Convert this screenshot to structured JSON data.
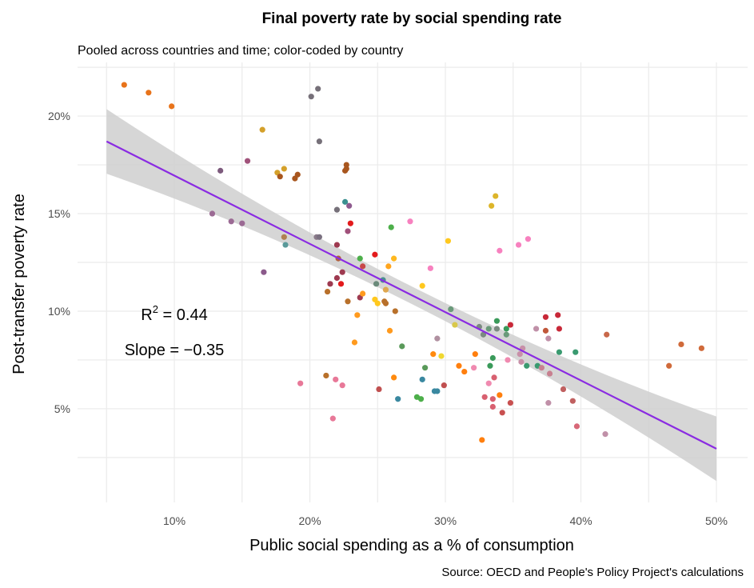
{
  "chart_data": {
    "type": "scatter",
    "title": "Final poverty rate by social spending rate",
    "subtitle": "Pooled across countries and time; color-coded by country",
    "xlabel": "Public social spending as a % of consumption",
    "ylabel": "Post-transfer poverty rate",
    "caption": "Source: OECD and People's Policy Project's calculations",
    "xlim": [
      2.86,
      52.3
    ],
    "ylim": [
      0.2,
      22.75
    ],
    "x_ticks": [
      {
        "value": 10,
        "label": "10%"
      },
      {
        "value": 20,
        "label": "20%"
      },
      {
        "value": 30,
        "label": "30%"
      },
      {
        "value": 40,
        "label": "40%"
      },
      {
        "value": 50,
        "label": "50%"
      }
    ],
    "y_ticks": [
      {
        "value": 5,
        "label": "5%"
      },
      {
        "value": 10,
        "label": "10%"
      },
      {
        "value": 15,
        "label": "15%"
      },
      {
        "value": 20,
        "label": "20%"
      }
    ],
    "x_minor_grid": [
      5,
      15,
      25,
      35,
      45
    ],
    "y_minor_grid": [
      2.5,
      7.5,
      12.5,
      17.5,
      22.5
    ],
    "grid": true,
    "legend": "none",
    "annotations": {
      "r2_label": "R",
      "r2_sup": "2",
      "r2_value": " = 0.44",
      "slope": "Slope = −0.35"
    },
    "fit": {
      "slope": -0.35,
      "intercept": 20.45,
      "x_range": [
        5,
        50
      ],
      "color": "#8A2BE2",
      "band_color": "#CFCFCF"
    },
    "points": [
      [
        6.3,
        21.6,
        "#E8731A"
      ],
      [
        8.1,
        21.2,
        "#E8731A"
      ],
      [
        9.8,
        20.5,
        "#E8731A"
      ],
      [
        16.5,
        19.3,
        "#D4A02A"
      ],
      [
        20.1,
        21.0,
        "#767079"
      ],
      [
        20.6,
        21.4,
        "#767079"
      ],
      [
        20.7,
        18.7,
        "#767079"
      ],
      [
        15.4,
        17.7,
        "#A0527A"
      ],
      [
        13.4,
        17.2,
        "#7D5A7D"
      ],
      [
        17.6,
        17.1,
        "#D4A02A"
      ],
      [
        18.1,
        17.3,
        "#D4A02A"
      ],
      [
        17.8,
        16.9,
        "#A8561E"
      ],
      [
        18.9,
        16.8,
        "#A8561E"
      ],
      [
        19.1,
        17.0,
        "#A8561E"
      ],
      [
        22.7,
        17.5,
        "#A8561E"
      ],
      [
        22.7,
        17.3,
        "#A8561E"
      ],
      [
        22.6,
        17.2,
        "#A8561E"
      ],
      [
        12.8,
        15.0,
        "#9B6A94"
      ],
      [
        14.2,
        14.6,
        "#9B6A94"
      ],
      [
        15.0,
        14.5,
        "#9B6A94"
      ],
      [
        16.6,
        12.0,
        "#8B5A8B"
      ],
      [
        18.1,
        13.8,
        "#B08050"
      ],
      [
        18.2,
        13.4,
        "#5A9A9A"
      ],
      [
        22.6,
        15.6,
        "#3A9090"
      ],
      [
        22.9,
        15.4,
        "#8E5A8E"
      ],
      [
        22.0,
        15.2,
        "#767079"
      ],
      [
        23.0,
        14.5,
        "#E31A1C"
      ],
      [
        22.8,
        14.1,
        "#A0507A"
      ],
      [
        20.5,
        13.8,
        "#8A7A8A"
      ],
      [
        20.7,
        13.8,
        "#7A7080"
      ],
      [
        22.0,
        13.4,
        "#9E3A50"
      ],
      [
        22.1,
        12.7,
        "#B06040"
      ],
      [
        23.7,
        12.7,
        "#4DAF4A"
      ],
      [
        24.8,
        12.9,
        "#E31A1C"
      ],
      [
        26.0,
        14.3,
        "#4DAF4A"
      ],
      [
        27.4,
        14.6,
        "#F781BF"
      ],
      [
        33.7,
        15.9,
        "#DDB52A"
      ],
      [
        33.4,
        15.4,
        "#DDB52A"
      ],
      [
        30.2,
        13.6,
        "#FFC81E"
      ],
      [
        26.2,
        12.7,
        "#FFB81E"
      ],
      [
        25.8,
        12.3,
        "#FFA51E"
      ],
      [
        28.9,
        12.2,
        "#F781BF"
      ],
      [
        23.9,
        12.3,
        "#C84848"
      ],
      [
        22.4,
        12.0,
        "#9E3A50"
      ],
      [
        22.0,
        11.7,
        "#9E3A50"
      ],
      [
        21.5,
        11.4,
        "#9E3A50"
      ],
      [
        22.3,
        11.4,
        "#E31A1C"
      ],
      [
        21.3,
        11.0,
        "#B8702A"
      ],
      [
        22.8,
        10.5,
        "#B8702A"
      ],
      [
        23.7,
        10.7,
        "#9E3A50"
      ],
      [
        23.9,
        10.9,
        "#FF9A1E"
      ],
      [
        24.9,
        11.4,
        "#6A8A7A"
      ],
      [
        25.4,
        11.6,
        "#4A9090"
      ],
      [
        25.6,
        11.1,
        "#E0A850"
      ],
      [
        24.8,
        10.6,
        "#FFC81E"
      ],
      [
        25.0,
        10.4,
        "#FFC81E"
      ],
      [
        25.5,
        10.5,
        "#B8702A"
      ],
      [
        25.6,
        10.4,
        "#B8702A"
      ],
      [
        26.3,
        10.0,
        "#B8702A"
      ],
      [
        28.3,
        11.3,
        "#FFC81E"
      ],
      [
        23.5,
        9.8,
        "#FF9A1E"
      ],
      [
        25.9,
        9.0,
        "#FF9A1E"
      ],
      [
        23.3,
        8.4,
        "#FF9A1E"
      ],
      [
        26.8,
        8.2,
        "#5A9A5A"
      ],
      [
        30.4,
        10.1,
        "#6A9A7A"
      ],
      [
        30.7,
        9.3,
        "#D8C84A"
      ],
      [
        29.4,
        8.6,
        "#B090A0"
      ],
      [
        29.1,
        7.8,
        "#FF8A0E"
      ],
      [
        29.7,
        7.7,
        "#F0D830"
      ],
      [
        28.5,
        7.1,
        "#5A9A5A"
      ],
      [
        28.3,
        6.5,
        "#3A88A0"
      ],
      [
        26.2,
        6.6,
        "#FF8A0E"
      ],
      [
        25.1,
        6.0,
        "#C05050"
      ],
      [
        26.5,
        5.5,
        "#3A88A0"
      ],
      [
        27.9,
        5.6,
        "#4DAF4A"
      ],
      [
        28.2,
        5.5,
        "#4DAF4A"
      ],
      [
        29.2,
        5.9,
        "#3A88A0"
      ],
      [
        29.4,
        5.9,
        "#3A88A0"
      ],
      [
        29.9,
        6.2,
        "#C05050"
      ],
      [
        21.2,
        6.7,
        "#B8702A"
      ],
      [
        21.9,
        6.5,
        "#E87898"
      ],
      [
        22.4,
        6.2,
        "#E87898"
      ],
      [
        19.3,
        6.3,
        "#E87898"
      ],
      [
        21.7,
        4.5,
        "#E87898"
      ],
      [
        31.0,
        7.2,
        "#FF7F0E"
      ],
      [
        31.4,
        6.9,
        "#FF7F0E"
      ],
      [
        32.2,
        7.8,
        "#FF7F0E"
      ],
      [
        32.1,
        7.1,
        "#F08AB0"
      ],
      [
        32.7,
        3.4,
        "#FF7F0E"
      ],
      [
        32.5,
        9.2,
        "#7A8A80"
      ],
      [
        32.8,
        8.8,
        "#7A8A80"
      ],
      [
        33.2,
        9.1,
        "#6A9A7A"
      ],
      [
        33.8,
        9.5,
        "#3A9A5A"
      ],
      [
        33.8,
        9.1,
        "#7A8A80"
      ],
      [
        34.5,
        9.1,
        "#3A9A5A"
      ],
      [
        34.5,
        8.8,
        "#6A9A7A"
      ],
      [
        34.8,
        9.3,
        "#C82838"
      ],
      [
        33.5,
        7.6,
        "#3A9A5A"
      ],
      [
        33.3,
        7.2,
        "#3A9A5A"
      ],
      [
        33.6,
        6.6,
        "#D86070"
      ],
      [
        33.2,
        6.3,
        "#F08AB0"
      ],
      [
        32.9,
        5.6,
        "#D86070"
      ],
      [
        33.5,
        5.5,
        "#D86070"
      ],
      [
        33.5,
        5.1,
        "#D86070"
      ],
      [
        34.0,
        5.7,
        "#FF7F0E"
      ],
      [
        34.2,
        4.8,
        "#C85050"
      ],
      [
        34.8,
        5.3,
        "#C85050"
      ],
      [
        34.0,
        13.1,
        "#F781BF"
      ],
      [
        35.4,
        13.4,
        "#F781BF"
      ],
      [
        36.1,
        13.7,
        "#F781BF"
      ],
      [
        35.7,
        8.1,
        "#C890A8"
      ],
      [
        35.5,
        7.8,
        "#C890A8"
      ],
      [
        35.6,
        7.4,
        "#C890A8"
      ],
      [
        34.6,
        7.5,
        "#F08AB0"
      ],
      [
        36.0,
        7.2,
        "#3A9A70"
      ],
      [
        36.8,
        7.2,
        "#3A9A70"
      ],
      [
        37.1,
        7.1,
        "#C88090"
      ],
      [
        37.7,
        6.8,
        "#C88090"
      ],
      [
        36.7,
        9.1,
        "#C090A8"
      ],
      [
        37.4,
        9.7,
        "#C82838"
      ],
      [
        37.4,
        9.0,
        "#C0583A"
      ],
      [
        37.6,
        8.6,
        "#C090A8"
      ],
      [
        38.3,
        9.8,
        "#C82838"
      ],
      [
        38.4,
        9.1,
        "#C82838"
      ],
      [
        38.4,
        7.9,
        "#3A9A70"
      ],
      [
        39.6,
        7.9,
        "#3A9A70"
      ],
      [
        38.7,
        6.0,
        "#C06060"
      ],
      [
        39.4,
        5.4,
        "#C06060"
      ],
      [
        37.6,
        5.3,
        "#C090A8"
      ],
      [
        39.7,
        4.1,
        "#D86878"
      ],
      [
        41.9,
        8.8,
        "#C8684A"
      ],
      [
        41.8,
        3.7,
        "#C090A8"
      ],
      [
        46.5,
        7.2,
        "#D06A3A"
      ],
      [
        47.4,
        8.3,
        "#D06A3A"
      ],
      [
        48.9,
        8.1,
        "#D06A3A"
      ]
    ]
  }
}
